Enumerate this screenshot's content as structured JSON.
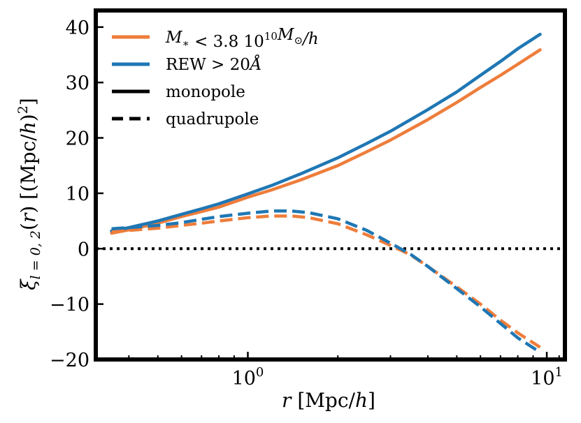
{
  "chart_data": {
    "type": "line",
    "title": "",
    "xscale": "log",
    "xlim": [
      0.31,
      11.5
    ],
    "ylim": [
      -20,
      43
    ],
    "grid": false,
    "xlabel": {
      "var": "r",
      "unit": " [Mpc/",
      "unit_h": "h",
      "close": "]"
    },
    "ylabel": {
      "xi": "ξ",
      "sub": "l = 0, 2",
      "paren_open": "(",
      "r": "r",
      "unit": ") [(Mpc/",
      "unit_h": "h",
      "unit_close": ")",
      "sup": "2",
      "close": "]"
    },
    "xticks": {
      "major": [
        {
          "value": 1,
          "base": "10",
          "exp": "0"
        },
        {
          "value": 10,
          "base": "10",
          "exp": "1"
        }
      ],
      "minor": [
        0.4,
        0.5,
        0.6,
        0.7,
        0.8,
        0.9,
        2,
        3,
        4,
        5,
        6,
        7,
        8,
        9,
        11
      ]
    },
    "yticks": [
      {
        "value": -20,
        "label": "−20"
      },
      {
        "value": -10,
        "label": "−10"
      },
      {
        "value": 0,
        "label": "0"
      },
      {
        "value": 10,
        "label": "10"
      },
      {
        "value": 20,
        "label": "20"
      },
      {
        "value": 30,
        "label": "30"
      },
      {
        "value": 40,
        "label": "40"
      }
    ],
    "ref_line": {
      "y": 0,
      "style": "dotted",
      "color": "#000000"
    },
    "series": [
      {
        "name": "M* < 3.8 10^10 M☉/h monopole",
        "group": "stellar_mass",
        "multipole": "monopole",
        "color": "#ee7d3b",
        "dash": "solid",
        "x": [
          0.35,
          0.4,
          0.5,
          0.6,
          0.7,
          0.8,
          1.0,
          1.2,
          1.5,
          2.0,
          2.5,
          3.0,
          4.0,
          5.0,
          6.0,
          7.0,
          8.0,
          9.5
        ],
        "y": [
          2.8,
          3.4,
          4.6,
          5.8,
          6.7,
          7.5,
          9.3,
          10.6,
          12.4,
          15.0,
          17.5,
          19.6,
          23.3,
          26.4,
          29.1,
          31.3,
          33.3,
          35.9
        ]
      },
      {
        "name": "REW > 20Å monopole",
        "group": "rew",
        "multipole": "monopole",
        "color": "#1f77b4",
        "dash": "solid",
        "x": [
          0.35,
          0.4,
          0.5,
          0.6,
          0.7,
          0.8,
          1.0,
          1.2,
          1.5,
          2.0,
          2.5,
          3.0,
          4.0,
          5.0,
          6.0,
          7.0,
          8.0,
          9.5
        ],
        "y": [
          3.2,
          3.8,
          5.0,
          6.2,
          7.2,
          8.1,
          9.9,
          11.4,
          13.5,
          16.4,
          19.0,
          21.2,
          25.1,
          28.3,
          31.3,
          33.8,
          36.1,
          38.7
        ]
      },
      {
        "name": "M* < 3.8 10^10 M☉/h quadrupole",
        "group": "stellar_mass",
        "multipole": "quadrupole",
        "color": "#ee7d3b",
        "dash": "dashed",
        "x": [
          0.35,
          0.4,
          0.5,
          0.6,
          0.7,
          0.8,
          1.0,
          1.2,
          1.4,
          1.6,
          2.0,
          2.5,
          3.0,
          3.5,
          4.0,
          5.0,
          6.0,
          7.0,
          8.0,
          9.5
        ],
        "y": [
          3.0,
          3.3,
          3.7,
          4.2,
          4.6,
          5.0,
          5.6,
          5.9,
          5.9,
          5.6,
          4.5,
          2.5,
          0.6,
          -1.1,
          -3.2,
          -6.9,
          -10.0,
          -12.9,
          -15.2,
          -17.8
        ]
      },
      {
        "name": "REW > 20Å quadrupole",
        "group": "rew",
        "multipole": "quadrupole",
        "color": "#1f77b4",
        "dash": "dashed",
        "x": [
          0.35,
          0.4,
          0.5,
          0.6,
          0.7,
          0.8,
          1.0,
          1.2,
          1.4,
          1.6,
          2.0,
          2.5,
          3.0,
          3.5,
          4.0,
          5.0,
          6.0,
          7.0,
          8.0,
          9.5
        ],
        "y": [
          3.6,
          3.8,
          4.2,
          4.7,
          5.3,
          5.8,
          6.4,
          6.8,
          6.8,
          6.5,
          5.4,
          3.3,
          1.0,
          -1.0,
          -3.2,
          -7.2,
          -10.5,
          -13.5,
          -16.1,
          -18.7
        ]
      }
    ],
    "legend": {
      "position": "upper-left",
      "entries": [
        {
          "kind": "color",
          "color": "#ee7d3b",
          "dash": "solid",
          "label_parts": [
            {
              "text": "M",
              "style": "italic"
            },
            {
              "text": "∗",
              "style": "sub"
            },
            {
              "text": " < 3.8 10",
              "style": "normal"
            },
            {
              "text": "10",
              "style": "sup"
            },
            {
              "text": "M",
              "style": "italic"
            },
            {
              "text": "⊙",
              "style": "sub"
            },
            {
              "text": "/",
              "style": "italic"
            },
            {
              "text": "h",
              "style": "italic"
            }
          ]
        },
        {
          "kind": "color",
          "color": "#1f77b4",
          "dash": "solid",
          "label_parts": [
            {
              "text": "REW > 20",
              "style": "normal"
            },
            {
              "text": "Å",
              "style": "italic"
            }
          ]
        },
        {
          "kind": "style",
          "color": "#000000",
          "dash": "solid",
          "label_parts": [
            {
              "text": "monopole",
              "style": "normal"
            }
          ]
        },
        {
          "kind": "style",
          "color": "#000000",
          "dash": "dashed",
          "label_parts": [
            {
              "text": "quadrupole",
              "style": "normal"
            }
          ]
        }
      ]
    }
  }
}
